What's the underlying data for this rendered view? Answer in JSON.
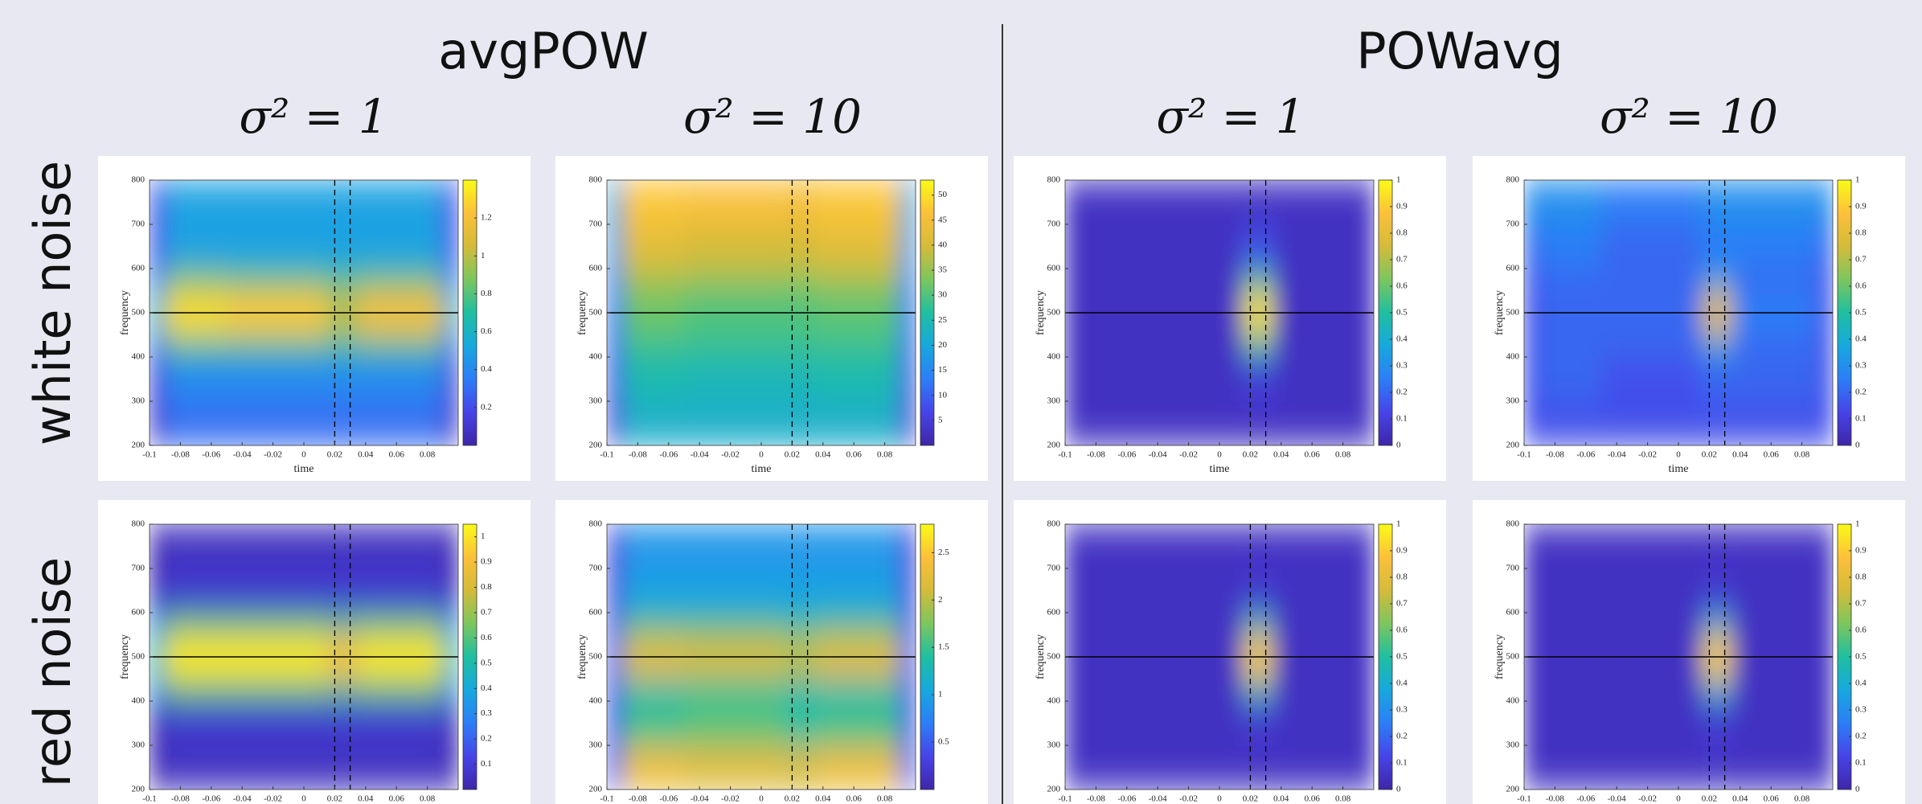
{
  "column_groups": [
    "avgPOW",
    "POWavg"
  ],
  "column_titles": [
    "σ² = 1",
    "σ² = 10",
    "σ² = 1",
    "σ² = 10"
  ],
  "row_titles": [
    "white noise",
    "red noise"
  ],
  "chart_data": [
    {
      "type": "heatmap",
      "colormap": "parula",
      "xlabel": "time",
      "ylabel": "frequency",
      "x_edges": [
        -0.1,
        -0.09,
        -0.05,
        0.015,
        0.035,
        0.09,
        0.1
      ],
      "y_edges": [
        200,
        300,
        400,
        450,
        550,
        600,
        700,
        800
      ],
      "z": [
        [
          0.1,
          0.3,
          0.3,
          0.3,
          0.3,
          0.1
        ],
        [
          0.15,
          0.4,
          0.4,
          0.4,
          0.4,
          0.15
        ],
        [
          0.3,
          0.75,
          0.75,
          0.7,
          0.75,
          0.3
        ],
        [
          0.6,
          1.3,
          1.25,
          1.0,
          1.2,
          0.6
        ],
        [
          0.35,
          0.85,
          0.8,
          0.75,
          0.8,
          0.35
        ],
        [
          0.2,
          0.5,
          0.5,
          0.5,
          0.5,
          0.2
        ],
        [
          0.2,
          0.5,
          0.5,
          0.5,
          0.5,
          0.2
        ]
      ],
      "xlim": [
        -0.1,
        0.1
      ],
      "ylim": [
        200,
        800
      ],
      "xticks": [
        -0.1,
        -0.08,
        -0.06,
        -0.04,
        -0.02,
        0,
        0.02,
        0.04,
        0.06,
        0.08
      ],
      "yticks": [
        200,
        300,
        400,
        500,
        600,
        700,
        800
      ],
      "clim": [
        0,
        1.4
      ],
      "cticks": [
        0.2,
        0.4,
        0.6,
        0.8,
        1,
        1.2
      ],
      "vlines": [
        0.02,
        0.03
      ],
      "hline": 500
    },
    {
      "type": "heatmap",
      "colormap": "parula",
      "xlabel": "time",
      "ylabel": "frequency",
      "x_edges": [
        -0.1,
        -0.09,
        -0.05,
        0.015,
        0.035,
        0.09,
        0.1
      ],
      "y_edges": [
        200,
        300,
        400,
        450,
        550,
        600,
        700,
        800
      ],
      "z": [
        [
          5,
          22,
          22,
          22,
          22,
          5
        ],
        [
          8,
          25,
          24,
          24,
          25,
          8
        ],
        [
          10,
          28,
          28,
          28,
          28,
          10
        ],
        [
          12,
          32,
          30,
          30,
          31,
          12
        ],
        [
          14,
          36,
          35,
          34,
          36,
          14
        ],
        [
          18,
          42,
          40,
          40,
          42,
          18
        ],
        [
          20,
          47,
          46,
          45,
          47,
          20
        ]
      ],
      "xlim": [
        -0.1,
        0.1
      ],
      "ylim": [
        200,
        800
      ],
      "xticks": [
        -0.1,
        -0.08,
        -0.06,
        -0.04,
        -0.02,
        0,
        0.02,
        0.04,
        0.06,
        0.08
      ],
      "yticks": [
        200,
        300,
        400,
        500,
        600,
        700,
        800
      ],
      "clim": [
        0,
        53
      ],
      "cticks": [
        5,
        10,
        15,
        20,
        25,
        30,
        35,
        40,
        45,
        50
      ],
      "vlines": [
        0.02,
        0.03
      ],
      "hline": 500
    },
    {
      "type": "heatmap",
      "colormap": "parula",
      "xlabel": "time",
      "ylabel": "frequency",
      "x_edges": [
        -0.1,
        -0.09,
        -0.05,
        0.015,
        0.035,
        0.09,
        0.1
      ],
      "y_edges": [
        200,
        300,
        400,
        450,
        550,
        600,
        700,
        800
      ],
      "z": [
        [
          0.05,
          0.05,
          0.05,
          0.05,
          0.05,
          0.05
        ],
        [
          0.05,
          0.05,
          0.05,
          0.1,
          0.05,
          0.05
        ],
        [
          0.05,
          0.05,
          0.05,
          0.5,
          0.05,
          0.05
        ],
        [
          0.05,
          0.05,
          0.05,
          0.95,
          0.05,
          0.05
        ],
        [
          0.05,
          0.05,
          0.05,
          0.5,
          0.05,
          0.05
        ],
        [
          0.05,
          0.05,
          0.05,
          0.15,
          0.05,
          0.05
        ],
        [
          0.05,
          0.05,
          0.05,
          0.05,
          0.05,
          0.05
        ]
      ],
      "xlim": [
        -0.1,
        0.1
      ],
      "ylim": [
        200,
        800
      ],
      "xticks": [
        -0.1,
        -0.08,
        -0.06,
        -0.04,
        -0.02,
        0,
        0.02,
        0.04,
        0.06,
        0.08
      ],
      "yticks": [
        200,
        300,
        400,
        500,
        600,
        700,
        800
      ],
      "clim": [
        0,
        1
      ],
      "cticks": [
        0,
        0.1,
        0.2,
        0.3,
        0.4,
        0.5,
        0.6,
        0.7,
        0.8,
        0.9,
        1
      ],
      "vlines": [
        0.02,
        0.03
      ],
      "hline": 500
    },
    {
      "type": "heatmap",
      "colormap": "parula",
      "xlabel": "time",
      "ylabel": "frequency",
      "x_edges": [
        -0.1,
        -0.09,
        -0.05,
        0.015,
        0.035,
        0.09,
        0.1
      ],
      "y_edges": [
        200,
        300,
        400,
        450,
        550,
        600,
        700,
        800
      ],
      "z": [
        [
          0.15,
          0.15,
          0.15,
          0.15,
          0.15,
          0.15
        ],
        [
          0.15,
          0.2,
          0.15,
          0.2,
          0.2,
          0.15
        ],
        [
          0.15,
          0.2,
          0.2,
          0.35,
          0.2,
          0.15
        ],
        [
          0.15,
          0.2,
          0.2,
          0.8,
          0.25,
          0.15
        ],
        [
          0.15,
          0.2,
          0.2,
          0.35,
          0.2,
          0.15
        ],
        [
          0.2,
          0.25,
          0.2,
          0.25,
          0.25,
          0.2
        ],
        [
          0.3,
          0.3,
          0.25,
          0.3,
          0.3,
          0.3
        ]
      ],
      "xlim": [
        -0.1,
        0.1
      ],
      "ylim": [
        200,
        800
      ],
      "xticks": [
        -0.1,
        -0.08,
        -0.06,
        -0.04,
        -0.02,
        0,
        0.02,
        0.04,
        0.06,
        0.08
      ],
      "yticks": [
        200,
        300,
        400,
        500,
        600,
        700,
        800
      ],
      "clim": [
        0,
        1
      ],
      "cticks": [
        0,
        0.1,
        0.2,
        0.3,
        0.4,
        0.5,
        0.6,
        0.7,
        0.8,
        0.9,
        1
      ],
      "vlines": [
        0.02,
        0.03
      ],
      "hline": 500
    },
    {
      "type": "heatmap",
      "colormap": "parula",
      "ylabel": "frequency",
      "x_edges": [
        -0.1,
        -0.09,
        -0.05,
        0.015,
        0.035,
        0.09,
        0.1
      ],
      "y_edges": [
        200,
        300,
        400,
        450,
        550,
        600,
        700,
        800
      ],
      "z": [
        [
          0.02,
          0.05,
          0.05,
          0.05,
          0.05,
          0.02
        ],
        [
          0.03,
          0.08,
          0.08,
          0.08,
          0.08,
          0.03
        ],
        [
          0.3,
          0.6,
          0.6,
          0.55,
          0.6,
          0.3
        ],
        [
          0.5,
          1.0,
          1.0,
          0.9,
          1.0,
          0.5
        ],
        [
          0.3,
          0.6,
          0.6,
          0.55,
          0.6,
          0.3
        ],
        [
          0.03,
          0.08,
          0.08,
          0.08,
          0.08,
          0.03
        ],
        [
          0.02,
          0.05,
          0.05,
          0.05,
          0.05,
          0.02
        ]
      ],
      "xlim": [
        -0.1,
        0.1
      ],
      "ylim": [
        200,
        800
      ],
      "xticks": [
        -0.1,
        -0.08,
        -0.06,
        -0.04,
        -0.02,
        0,
        0.02,
        0.04,
        0.06,
        0.08
      ],
      "yticks": [
        200,
        300,
        400,
        500,
        600,
        700,
        800
      ],
      "clim": [
        0,
        1.05
      ],
      "cticks": [
        0.1,
        0.2,
        0.3,
        0.4,
        0.5,
        0.6,
        0.7,
        0.8,
        0.9,
        1
      ],
      "vlines": [
        0.02,
        0.03
      ],
      "hline": 500
    },
    {
      "type": "heatmap",
      "colormap": "parula",
      "ylabel": "frequency",
      "x_edges": [
        -0.1,
        -0.09,
        -0.05,
        0.015,
        0.035,
        0.09,
        0.1
      ],
      "y_edges": [
        200,
        300,
        400,
        450,
        550,
        600,
        700,
        800
      ],
      "z": [
        [
          0.5,
          2.3,
          2.2,
          2.1,
          2.3,
          0.5
        ],
        [
          0.4,
          1.5,
          1.6,
          1.4,
          1.5,
          0.4
        ],
        [
          0.4,
          1.3,
          1.4,
          1.3,
          1.3,
          0.4
        ],
        [
          0.5,
          2.2,
          2.1,
          2.0,
          2.2,
          0.5
        ],
        [
          0.4,
          1.5,
          1.5,
          1.4,
          1.5,
          0.4
        ],
        [
          0.3,
          1.0,
          1.0,
          1.0,
          1.0,
          0.3
        ],
        [
          0.3,
          0.9,
          0.9,
          0.9,
          0.9,
          0.3
        ]
      ],
      "xlim": [
        -0.1,
        0.1
      ],
      "ylim": [
        200,
        800
      ],
      "xticks": [
        -0.1,
        -0.08,
        -0.06,
        -0.04,
        -0.02,
        0,
        0.02,
        0.04,
        0.06,
        0.08
      ],
      "yticks": [
        200,
        300,
        400,
        500,
        600,
        700,
        800
      ],
      "clim": [
        0,
        2.8
      ],
      "cticks": [
        0.5,
        1,
        1.5,
        2,
        2.5
      ],
      "vlines": [
        0.02,
        0.03
      ],
      "hline": 500
    },
    {
      "type": "heatmap",
      "colormap": "parula",
      "ylabel": "frequency",
      "x_edges": [
        -0.1,
        -0.09,
        -0.05,
        0.015,
        0.035,
        0.09,
        0.1
      ],
      "y_edges": [
        200,
        300,
        400,
        450,
        550,
        600,
        700,
        800
      ],
      "z": [
        [
          0.05,
          0.05,
          0.05,
          0.05,
          0.05,
          0.05
        ],
        [
          0.05,
          0.05,
          0.05,
          0.08,
          0.05,
          0.05
        ],
        [
          0.05,
          0.05,
          0.05,
          0.45,
          0.05,
          0.05
        ],
        [
          0.05,
          0.05,
          0.05,
          0.9,
          0.05,
          0.05
        ],
        [
          0.05,
          0.05,
          0.05,
          0.45,
          0.05,
          0.05
        ],
        [
          0.05,
          0.05,
          0.05,
          0.08,
          0.05,
          0.05
        ],
        [
          0.05,
          0.05,
          0.05,
          0.05,
          0.05,
          0.05
        ]
      ],
      "xlim": [
        -0.1,
        0.1
      ],
      "ylim": [
        200,
        800
      ],
      "xticks": [
        -0.1,
        -0.08,
        -0.06,
        -0.04,
        -0.02,
        0,
        0.02,
        0.04,
        0.06,
        0.08
      ],
      "yticks": [
        200,
        300,
        400,
        500,
        600,
        700,
        800
      ],
      "clim": [
        0,
        1
      ],
      "cticks": [
        0,
        0.1,
        0.2,
        0.3,
        0.4,
        0.5,
        0.6,
        0.7,
        0.8,
        0.9,
        1
      ],
      "vlines": [
        0.02,
        0.03
      ],
      "hline": 500
    },
    {
      "type": "heatmap",
      "colormap": "parula",
      "ylabel": "frequency",
      "x_edges": [
        -0.1,
        -0.09,
        -0.05,
        0.015,
        0.035,
        0.09,
        0.1
      ],
      "y_edges": [
        200,
        300,
        400,
        450,
        550,
        600,
        700,
        800
      ],
      "z": [
        [
          0.05,
          0.05,
          0.05,
          0.06,
          0.05,
          0.05
        ],
        [
          0.05,
          0.05,
          0.05,
          0.08,
          0.05,
          0.05
        ],
        [
          0.05,
          0.05,
          0.05,
          0.4,
          0.05,
          0.05
        ],
        [
          0.05,
          0.05,
          0.05,
          0.9,
          0.05,
          0.05
        ],
        [
          0.05,
          0.05,
          0.05,
          0.4,
          0.05,
          0.05
        ],
        [
          0.05,
          0.05,
          0.05,
          0.08,
          0.05,
          0.05
        ],
        [
          0.05,
          0.05,
          0.05,
          0.05,
          0.05,
          0.05
        ]
      ],
      "xlim": [
        -0.1,
        0.1
      ],
      "ylim": [
        200,
        800
      ],
      "xticks": [
        -0.1,
        -0.08,
        -0.06,
        -0.04,
        -0.02,
        0,
        0.02,
        0.04,
        0.06,
        0.08
      ],
      "yticks": [
        200,
        300,
        400,
        500,
        600,
        700,
        800
      ],
      "clim": [
        0,
        1
      ],
      "cticks": [
        0,
        0.1,
        0.2,
        0.3,
        0.4,
        0.5,
        0.6,
        0.7,
        0.8,
        0.9,
        1
      ],
      "vlines": [
        0.02,
        0.03
      ],
      "hline": 500
    }
  ]
}
